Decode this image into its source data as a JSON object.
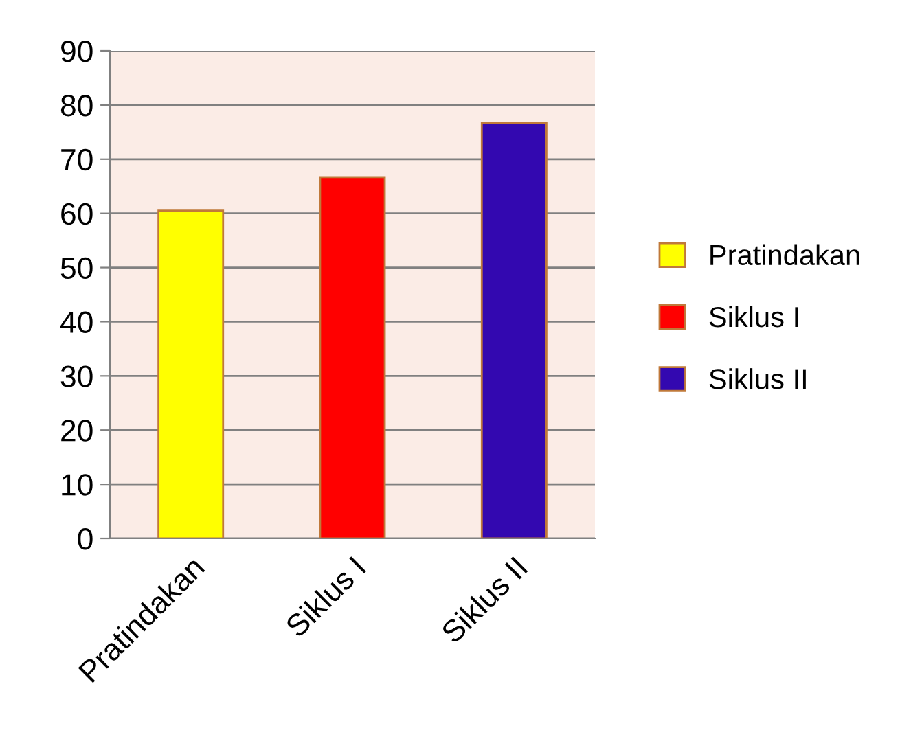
{
  "chart_data": {
    "type": "bar",
    "categories": [
      "Pratindakan",
      "Siklus I",
      "Siklus II"
    ],
    "stacked": true,
    "series": [
      {
        "name": "Pratindakan",
        "color": "#ffff00",
        "values": [
          60.5,
          null,
          null
        ]
      },
      {
        "name": "Siklus I",
        "color": "#ff0000",
        "values": [
          null,
          66.7,
          null
        ]
      },
      {
        "name": "Siklus II",
        "color": "#3308b0",
        "values": [
          null,
          null,
          76.7
        ]
      }
    ],
    "ylim": [
      0,
      90
    ],
    "yticks": [
      0,
      10,
      20,
      30,
      40,
      50,
      60,
      70,
      80,
      90
    ],
    "grid": "y",
    "legend": "right"
  }
}
